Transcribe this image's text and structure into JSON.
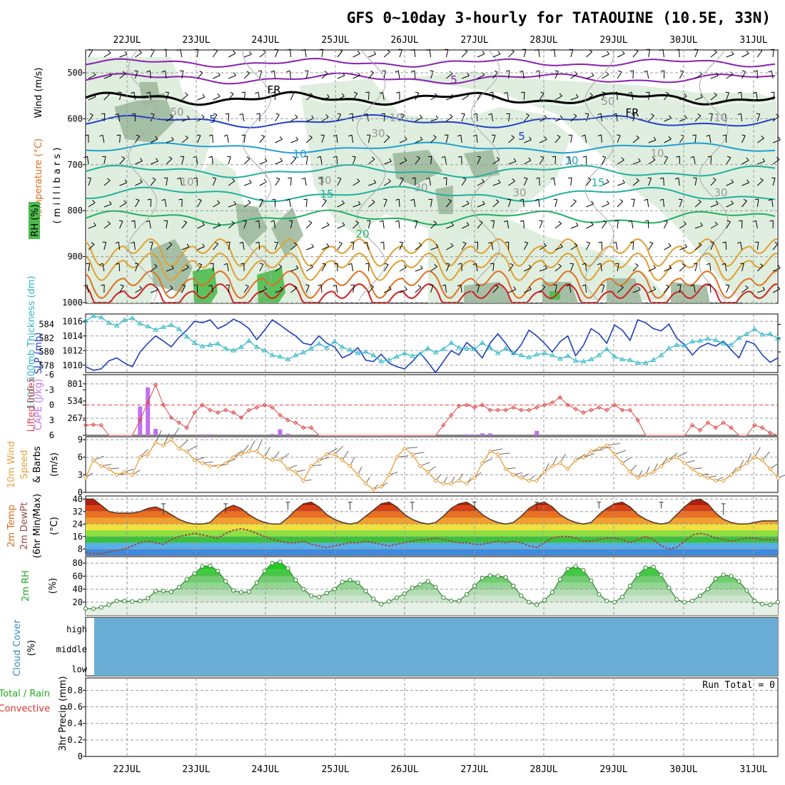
{
  "title": "GFS 0~10day 3-hourly for TATAOUINE (10.5E, 33N)",
  "dates": [
    "22JUL",
    "23JUL",
    "24JUL",
    "25JUL",
    "26JUL",
    "27JUL",
    "28JUL",
    "29JUL",
    "30JUL",
    "31JUL"
  ],
  "colors": {
    "rh_fill": "#dcecdc",
    "rh_mid": "#9fb99f",
    "rh_dark": "#4cbb4c",
    "slp": "#1f3fbf",
    "thickness": "#30b8c8",
    "lifted": "#e04848",
    "cape": "#c070ee",
    "wind10": "#e8a040",
    "temp": "#e06a1a",
    "dew": "#9a4a4a",
    "rh2m": "#22aa22",
    "cloud": "#6aaed6",
    "grid": "#999999",
    "purple": "#8a20b0",
    "black": "#000000",
    "blue": "#2040c8",
    "cyan": "#20a0d0",
    "teal": "#20b0a0",
    "green": "#20b060",
    "orange": "#e0a030",
    "red": "#d02020"
  },
  "panels": {
    "upper": {
      "ylabel_wind": "Wind (m/s)",
      "ylabel_temp": "Temperature (°C)",
      "ylabel_rh": "RH (%)",
      "ylabel_pres": "( m i l l i b a r s )",
      "ticks": [
        "500",
        "600",
        "700",
        "800",
        "900",
        "1000"
      ],
      "contour_labels": [
        {
          "text": "5",
          "color": "purple"
        },
        {
          "text": "FR",
          "color": "black"
        },
        {
          "text": "FR",
          "color": "black"
        },
        {
          "text": "5",
          "color": "blue"
        },
        {
          "text": "5",
          "color": "blue"
        },
        {
          "text": "10",
          "color": "cyan"
        },
        {
          "text": "10",
          "color": "cyan"
        },
        {
          "text": "15",
          "color": "teal"
        },
        {
          "text": "15",
          "color": "teal"
        },
        {
          "text": "20",
          "color": "green"
        },
        {
          "text": "50",
          "color": "grey"
        },
        {
          "text": "10",
          "color": "grey"
        },
        {
          "text": "30",
          "color": "grey"
        },
        {
          "text": "30",
          "color": "grey"
        },
        {
          "text": "30",
          "color": "grey"
        },
        {
          "text": "50",
          "color": "grey"
        },
        {
          "text": "30",
          "color": "grey"
        },
        {
          "text": "10",
          "color": "grey"
        },
        {
          "text": "10",
          "color": "grey"
        },
        {
          "text": "10",
          "color": "grey"
        },
        {
          "text": "30",
          "color": "grey"
        }
      ]
    },
    "slp": {
      "ylabel_thick": "1000-500mb Thickness (dm)",
      "ylabel_slp": "SLP (mb)",
      "left_ticks": [
        "584",
        "582",
        "580",
        "578"
      ],
      "right_ticks": [
        "1016",
        "1014",
        "1012",
        "1010"
      ]
    },
    "cape": {
      "ylabel_li": "Lifted Index",
      "ylabel_cape": "CAPE (J/kg)",
      "left_ticks": [
        "-6",
        "-3",
        "0",
        "3",
        "6"
      ],
      "right_ticks": [
        "801",
        "534",
        "267"
      ]
    },
    "wind10": {
      "ylabel1": "10m Wind",
      "ylabel2": "Speed",
      "ylabel3": "& Barbs",
      "ylabel_units": "(m/s)",
      "ticks": [
        "9",
        "6",
        "3",
        "0"
      ]
    },
    "temp2m": {
      "ylabel1": "2m Temp",
      "ylabel2": "2m DewPt",
      "ylabel3": "(6hr Min/Max)",
      "ylabel_units": "(°C)",
      "ticks": [
        "40",
        "32",
        "24",
        "16",
        "8"
      ]
    },
    "rh2m": {
      "ylabel": "2m RH",
      "ylabel_units": "(%)",
      "ticks": [
        "80",
        "60",
        "40",
        "20"
      ]
    },
    "cloud": {
      "ylabel": "Cloud Cover",
      "ylabel_units": "(%)",
      "levels": [
        "high",
        "middle",
        "low"
      ]
    },
    "precip": {
      "ylabel_total": "Total / Rain",
      "ylabel_conv": "Convective",
      "ylabel_units": "3hr Precip (mm)",
      "ticks": [
        "0.8",
        "0.6",
        "0.4",
        "0.2",
        "0"
      ],
      "run_total": "Run Total = 0"
    }
  },
  "chart_data": [
    {
      "type": "line",
      "name": "SLP and 1000-500mb thickness",
      "x_unit": "3-hourly steps from 21JUL 15Z",
      "series": [
        {
          "name": "SLP (mb)",
          "axis": "right",
          "ylim": [
            1009,
            1017
          ],
          "values": [
            1009.8,
            1009.3,
            1009.5,
            1010.6,
            1011.0,
            1010.3,
            1009.8,
            1011.8,
            1013.0,
            1014.0,
            1013.3,
            1012.5,
            1013.8,
            1014.8,
            1016.0,
            1015.8,
            1016.2,
            1015.0,
            1015.5,
            1016.3,
            1015.8,
            1015.0,
            1013.5,
            1014.8,
            1016.2,
            1015.5,
            1014.7,
            1014.0,
            1013.0,
            1012.8,
            1014.0,
            1013.0,
            1012.5,
            1011.0,
            1011.5,
            1012.4,
            1010.7,
            1010.5,
            1011.5,
            1010.3,
            1009.8,
            1009.5,
            1010.5,
            1011.7,
            1010.4,
            1009.0,
            1010.5,
            1012.0,
            1011.4,
            1013.1,
            1012.2,
            1011.0,
            1013.0,
            1014.3,
            1013.0,
            1011.5,
            1012.8,
            1014.8,
            1014.0,
            1013.0,
            1011.8,
            1013.2,
            1014.0,
            1011.3,
            1012.7,
            1015.0,
            1014.3,
            1013.0,
            1015.5,
            1014.8,
            1013.4,
            1016.2,
            1015.8,
            1015.0,
            1014.7,
            1015.6,
            1013.7,
            1012.8,
            1011.4,
            1012.5,
            1013.0,
            1012.6,
            1013.3,
            1012.1,
            1011.0,
            1013.3,
            1012.9,
            1011.4,
            1010.4,
            1011.0
          ]
        },
        {
          "name": "1000-500mb Thickness (dm)",
          "axis": "left",
          "ylim": [
            577,
            585.5
          ],
          "values": [
            584.5,
            585.2,
            585.0,
            584.2,
            583.8,
            584.6,
            584.9,
            584.1,
            583.7,
            583.2,
            583.6,
            583.9,
            583.3,
            582.2,
            581.3,
            580.8,
            581.0,
            581.2,
            580.5,
            580.2,
            580.7,
            581.6,
            580.7,
            580.2,
            579.5,
            579.3,
            578.9,
            579.5,
            579.9,
            580.5,
            581.2,
            580.6,
            581.5,
            580.7,
            580.3,
            579.8,
            580.0,
            579.5,
            578.6,
            578.8,
            579.3,
            579.8,
            579.4,
            579.7,
            580.5,
            579.9,
            580.4,
            581.3,
            580.6,
            580.5,
            580.4,
            581.3,
            580.6,
            579.8,
            580.5,
            579.8,
            579.5,
            579.2,
            579.6,
            579.8,
            579.5,
            579.0,
            579.4,
            578.7,
            578.6,
            578.9,
            579.5,
            580.4,
            579.3,
            578.9,
            578.8,
            578.4,
            578.4,
            578.8,
            579.5,
            580.5,
            581.0,
            580.9,
            581.5,
            581.6,
            581.9,
            581.7,
            581.2,
            581.0,
            582.0,
            582.6,
            583.3,
            582.5,
            582.6,
            581.9
          ]
        }
      ]
    },
    {
      "type": "bar",
      "name": "CAPE and Lifted Index",
      "series": [
        {
          "name": "CAPE (J/kg)",
          "bars": [
            [
              7,
              450
            ],
            [
              8,
              745
            ],
            [
              9,
              100
            ],
            [
              15,
              15
            ],
            [
              16,
              15
            ],
            [
              24,
              20
            ],
            [
              25,
              95
            ],
            [
              26,
              25
            ],
            [
              49,
              15
            ],
            [
              50,
              15
            ],
            [
              51,
              30
            ],
            [
              52,
              30
            ],
            [
              58,
              70
            ]
          ]
        },
        {
          "name": "Lifted Index",
          "ylim": [
            6,
            -6
          ],
          "values": [
            4.0,
            3.9,
            4.0,
            6.0,
            6.0,
            6.0,
            6.0,
            3.0,
            -0.5,
            -4.0,
            0.0,
            2.5,
            3.5,
            4.5,
            1.5,
            0.0,
            1.0,
            1.5,
            1.0,
            1.5,
            2.5,
            1.0,
            0.5,
            0.0,
            0.5,
            2.0,
            3.0,
            3.5,
            4.5,
            4.5,
            6.0,
            6.0,
            6.0,
            6.0,
            6.0,
            6.0,
            6.0,
            6.0,
            6.0,
            6.0,
            6.0,
            6.0,
            6.0,
            6.0,
            6.0,
            6.0,
            4.0,
            2.0,
            0.2,
            0.0,
            0.5,
            0.0,
            1.0,
            1.0,
            1.0,
            0.5,
            1.0,
            1.0,
            0.5,
            0.0,
            -0.5,
            -1.5,
            0.0,
            0.8,
            1.5,
            1.0,
            0.5,
            1.0,
            0.0,
            1.0,
            1.0,
            3.0,
            6.0,
            6.0,
            6.0,
            6.0,
            6.0,
            6.0,
            4.0,
            5.0,
            3.5,
            4.5,
            3.5,
            4.5,
            6.0,
            6.0,
            4.0,
            4.5,
            5.5,
            6.0
          ]
        }
      ]
    },
    {
      "type": "line",
      "name": "10m wind speed",
      "ylim": [
        0,
        9.5
      ],
      "values": [
        2.5,
        5.5,
        4.5,
        4.0,
        3.0,
        3.5,
        3.0,
        6.0,
        6.5,
        8.5,
        8.0,
        9.0,
        7.5,
        7.0,
        5.5,
        5.0,
        4.5,
        4.5,
        5.0,
        6.0,
        6.5,
        7.0,
        7.0,
        6.0,
        5.5,
        5.5,
        4.0,
        3.5,
        2.0,
        4.5,
        5.5,
        6.5,
        6.5,
        5.5,
        4.5,
        3.0,
        1.5,
        0.5,
        1.0,
        3.0,
        6.0,
        7.5,
        6.5,
        4.5,
        3.5,
        2.0,
        1.5,
        1.5,
        2.0,
        1.5,
        2.5,
        5.0,
        7.0,
        6.5,
        4.0,
        3.0,
        2.5,
        2.0,
        2.0,
        3.5,
        4.5,
        5.0,
        4.0,
        5.5,
        6.0,
        7.0,
        7.5,
        8.0,
        6.5,
        5.0,
        3.5,
        2.5,
        3.0,
        3.5,
        4.5,
        5.5,
        6.0,
        5.0,
        4.0,
        3.0,
        2.5,
        2.0,
        2.0,
        3.0,
        4.0,
        5.0,
        6.0,
        5.5,
        4.0,
        2.5
      ]
    },
    {
      "type": "area",
      "name": "2m temperature and dew point",
      "ylim": [
        4,
        42
      ],
      "temperature": [
        40,
        40,
        36,
        32,
        31,
        31,
        31,
        32,
        34,
        35,
        33,
        30,
        27,
        25,
        24,
        24,
        25,
        30,
        34,
        36,
        34,
        30,
        27,
        25,
        24,
        24,
        28,
        33,
        37,
        38,
        35,
        30,
        27,
        25,
        24,
        25,
        29,
        33,
        37,
        38,
        35,
        30,
        27,
        25,
        24,
        25,
        29,
        34,
        37,
        38,
        35,
        30,
        27,
        25,
        24,
        25,
        29,
        34,
        37,
        38,
        35,
        30,
        27,
        25,
        24,
        25,
        30,
        34,
        37,
        38,
        35,
        30,
        27,
        25,
        24,
        25,
        30,
        35,
        39,
        40,
        37,
        31,
        27,
        25,
        24,
        24,
        25,
        26,
        26,
        26
      ],
      "dewpoint": [
        6,
        5,
        5,
        6,
        7,
        8,
        10,
        12,
        13,
        12,
        11,
        14,
        16,
        17,
        18,
        17,
        16,
        15,
        18,
        20,
        21,
        20,
        18,
        16,
        14,
        13,
        12,
        12,
        13,
        11,
        10,
        9,
        10,
        11,
        12,
        12,
        13,
        12,
        11,
        10,
        11,
        12,
        13,
        14,
        14,
        15,
        14,
        13,
        12,
        12,
        11,
        11,
        12,
        13,
        12,
        13,
        12,
        10,
        9,
        12,
        15,
        16,
        16,
        15,
        13,
        13,
        14,
        15,
        15,
        14,
        12,
        14,
        16,
        14,
        10,
        8,
        9,
        13,
        17,
        18,
        17,
        15,
        14,
        13,
        14,
        15,
        15,
        14,
        14,
        14
      ]
    },
    {
      "type": "area",
      "name": "2m relative humidity",
      "ylim": [
        0,
        90
      ],
      "values": [
        10,
        10,
        12,
        16,
        22,
        22,
        21,
        22,
        26,
        37,
        37,
        36,
        43,
        55,
        64,
        75,
        76,
        68,
        52,
        38,
        35,
        36,
        50,
        68,
        80,
        82,
        72,
        54,
        40,
        30,
        28,
        34,
        40,
        51,
        54,
        50,
        37,
        25,
        17,
        21,
        27,
        33,
        42,
        47,
        52,
        43,
        27,
        22,
        22,
        32,
        45,
        57,
        61,
        60,
        58,
        45,
        30,
        20,
        16,
        23,
        35,
        55,
        71,
        75,
        69,
        53,
        32,
        22,
        20,
        28,
        45,
        62,
        73,
        74,
        62,
        42,
        24,
        20,
        22,
        30,
        40,
        56,
        62,
        60,
        52,
        38,
        22,
        17,
        16,
        20
      ]
    },
    {
      "type": "bar",
      "name": "Cloud cover",
      "levels": [
        "high",
        "middle",
        "low"
      ],
      "values_percent": {
        "high": 100,
        "middle": 100,
        "low": 100
      }
    },
    {
      "type": "bar",
      "name": "3hr precipitation",
      "ylim": [
        0,
        0.95
      ],
      "total_rain_mm": 0,
      "convective_mm": 0
    }
  ]
}
